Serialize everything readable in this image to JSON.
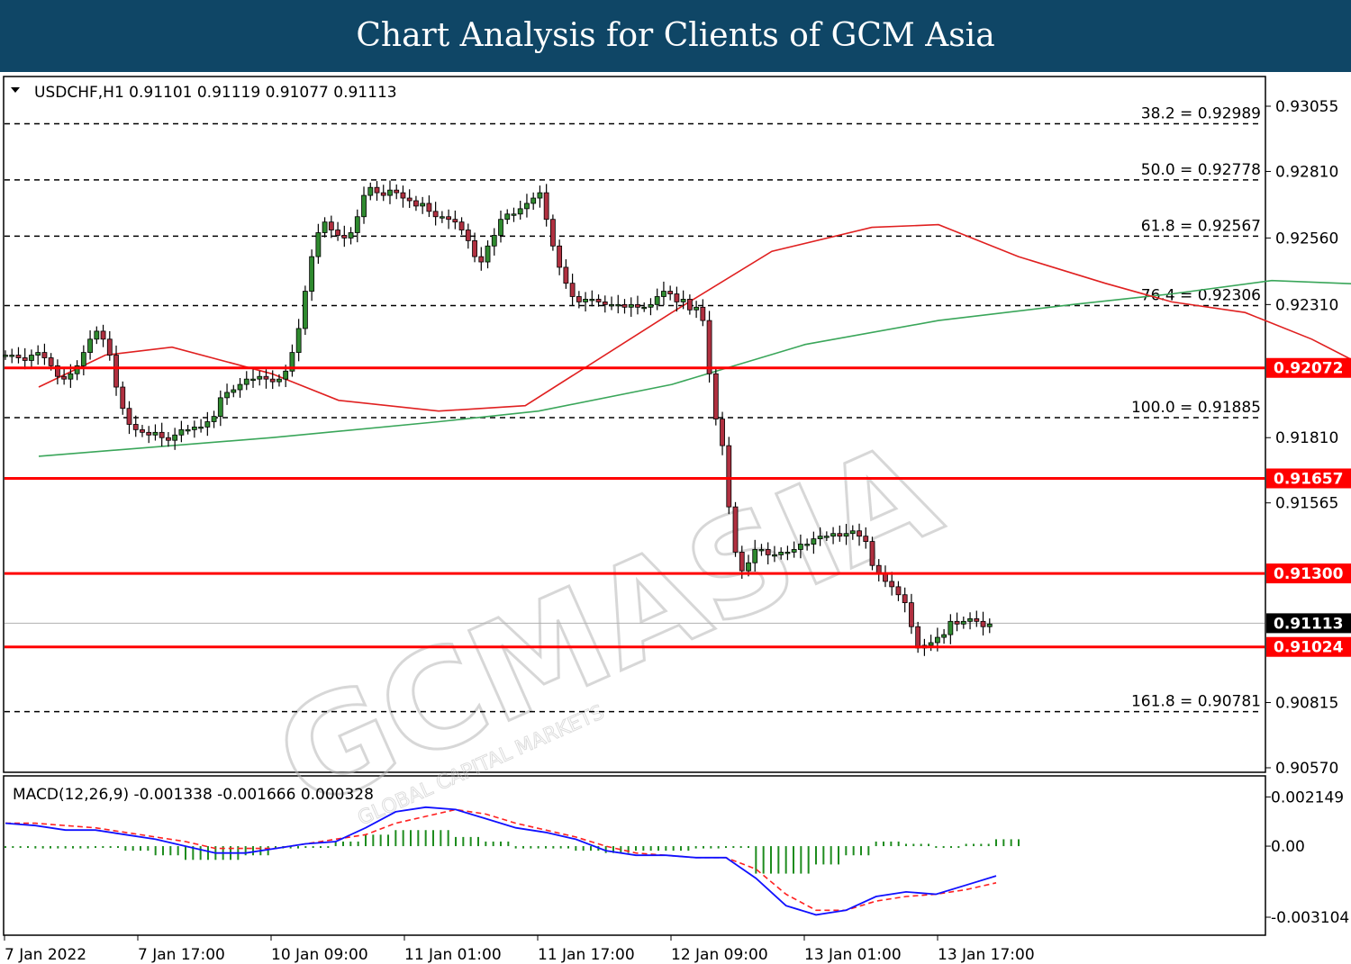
{
  "banner": {
    "title": "Chart Analysis for Clients of GCM Asia"
  },
  "colors": {
    "banner_bg": "#0f4666",
    "bull": "#2f8a2f",
    "bear": "#b03040",
    "ma_fast": "#e02020",
    "ma_slow": "#3aa65a",
    "sr_line": "#ff0000",
    "macd_line": "#1010ff",
    "signal_line": "#ff2020",
    "histogram": "#1e8c1e"
  },
  "chart_data": [
    {
      "type": "candlestick",
      "title": "USDCHF,H1  0.91101 0.91119 0.91077 0.91113",
      "symbol": "USDCHF,H1",
      "ohlc_header": [
        "0.91101",
        "0.91119",
        "0.91077",
        "0.91113"
      ],
      "ylim": [
        0.9048,
        0.9318
      ],
      "y_ticks": [
        "0.93055",
        "0.92810",
        "0.92560",
        "0.92310",
        "0.91810",
        "0.91565",
        "0.90815",
        "0.90570"
      ],
      "x_tick_labels": [
        "7 Jan 2022",
        "7 Jan 17:00",
        "10 Jan 09:00",
        "11 Jan 01:00",
        "11 Jan 17:00",
        "12 Jan 09:00",
        "13 Jan 01:00",
        "13 Jan 17:00"
      ],
      "current_price": "0.91113",
      "support_resistance": [
        "0.92072",
        "0.91657",
        "0.91300",
        "0.91024"
      ],
      "fibonacci_levels": [
        {
          "label": "38.2 = 0.92989",
          "price": 0.92989
        },
        {
          "label": "50.0 = 0.92778",
          "price": 0.92778
        },
        {
          "label": "61.8 = 0.92567",
          "price": 0.92567
        },
        {
          "label": "76.4 = 0.92306",
          "price": 0.92306
        },
        {
          "label": "100.0 = 0.91885",
          "price": 0.91885
        },
        {
          "label": "161.8 = 0.90781",
          "price": 0.90781
        }
      ],
      "close_path": [
        0.9212,
        0.9212,
        0.9211,
        0.921,
        0.9212,
        0.9213,
        0.9211,
        0.9208,
        0.9204,
        0.9203,
        0.9205,
        0.9208,
        0.9213,
        0.9218,
        0.9221,
        0.9218,
        0.9212,
        0.92,
        0.9192,
        0.9186,
        0.9184,
        0.9183,
        0.9182,
        0.9183,
        0.9181,
        0.918,
        0.9182,
        0.9184,
        0.9184,
        0.9185,
        0.9185,
        0.9187,
        0.9189,
        0.9196,
        0.9198,
        0.9199,
        0.9201,
        0.9203,
        0.9203,
        0.9204,
        0.9203,
        0.9202,
        0.9203,
        0.9206,
        0.9213,
        0.9222,
        0.9236,
        0.9249,
        0.9258,
        0.9262,
        0.9259,
        0.9257,
        0.9256,
        0.9258,
        0.9264,
        0.9272,
        0.9275,
        0.9273,
        0.9272,
        0.9274,
        0.9273,
        0.9271,
        0.927,
        0.9268,
        0.9269,
        0.9266,
        0.9264,
        0.9264,
        0.9263,
        0.9262,
        0.9259,
        0.9255,
        0.9249,
        0.9247,
        0.9253,
        0.9257,
        0.9263,
        0.9265,
        0.9265,
        0.9267,
        0.9269,
        0.9271,
        0.9273,
        0.9263,
        0.9253,
        0.9245,
        0.9239,
        0.9234,
        0.9232,
        0.9233,
        0.9233,
        0.9232,
        0.9231,
        0.9231,
        0.9231,
        0.923,
        0.9231,
        0.923,
        0.923,
        0.9231,
        0.9234,
        0.9236,
        0.9235,
        0.9232,
        0.9233,
        0.9229,
        0.923,
        0.9225,
        0.9205,
        0.9188,
        0.9178,
        0.9155,
        0.9138,
        0.9131,
        0.9134,
        0.9139,
        0.9139,
        0.9137,
        0.9137,
        0.9138,
        0.9138,
        0.9139,
        0.9141,
        0.9141,
        0.9143,
        0.9144,
        0.9144,
        0.9145,
        0.9144,
        0.9145,
        0.9146,
        0.9144,
        0.9142,
        0.9133,
        0.913,
        0.9127,
        0.9125,
        0.9122,
        0.9119,
        0.911,
        0.9102,
        0.9103,
        0.9104,
        0.9106,
        0.9107,
        0.9112,
        0.9111,
        0.9112,
        0.9113,
        0.9112,
        0.911,
        0.9111
      ],
      "ma_fast": [
        [
          0.92,
          5
        ],
        [
          0.9212,
          15
        ],
        [
          0.9215,
          25
        ],
        [
          0.9205,
          40
        ],
        [
          0.9195,
          50
        ],
        [
          0.9191,
          65
        ],
        [
          0.9193,
          78
        ],
        [
          0.9228,
          100
        ],
        [
          0.9251,
          115
        ],
        [
          0.926,
          130
        ],
        [
          0.9261,
          140
        ],
        [
          0.9249,
          152
        ],
        [
          0.9239,
          165
        ],
        [
          0.9232,
          175
        ],
        [
          0.9228,
          186
        ],
        [
          0.9218,
          196
        ],
        [
          0.92,
          210
        ],
        [
          0.9182,
          222
        ],
        [
          0.917,
          236
        ],
        [
          0.9153,
          250
        ],
        [
          0.9148,
          256
        ],
        [
          0.9137,
          262
        ],
        [
          0.913,
          270
        ]
      ],
      "ma_slow": [
        [
          0.9174,
          5
        ],
        [
          0.9181,
          40
        ],
        [
          0.9187,
          65
        ],
        [
          0.9191,
          80
        ],
        [
          0.9201,
          100
        ],
        [
          0.9216,
          120
        ],
        [
          0.9225,
          140
        ],
        [
          0.9231,
          160
        ],
        [
          0.9235,
          175
        ],
        [
          0.924,
          190
        ],
        [
          0.9238,
          210
        ],
        [
          0.9232,
          225
        ],
        [
          0.9225,
          240
        ],
        [
          0.921,
          255
        ],
        [
          0.919,
          266
        ],
        [
          0.9174,
          270
        ]
      ]
    },
    {
      "type": "macd",
      "title": "MACD(12,26,9) -0.001338 -0.001666 0.000328",
      "y_ticks": [
        "0.002149",
        "0.00",
        "-0.003104"
      ],
      "ylim": [
        -0.0033,
        0.0024
      ],
      "macd": [
        0.001,
        0.0009,
        0.0007,
        0.0007,
        0.0005,
        0.0003,
        0.0,
        -0.0003,
        -0.0003,
        -0.0001,
        0.0001,
        0.0002,
        0.0008,
        0.0015,
        0.0017,
        0.0016,
        0.0012,
        0.0008,
        0.0006,
        0.0003,
        -0.0002,
        -0.0004,
        -0.0004,
        -0.0005,
        -0.0005,
        -0.0014,
        -0.0026,
        -0.003,
        -0.0028,
        -0.0022,
        -0.002,
        -0.0021,
        -0.0017,
        -0.0013
      ],
      "signal": [
        0.001,
        0.001,
        0.0009,
        0.0008,
        0.0006,
        0.0004,
        0.0002,
        -0.0001,
        -0.0001,
        -0.0001,
        0.0001,
        0.0003,
        0.0005,
        0.001,
        0.0013,
        0.0016,
        0.0014,
        0.001,
        0.0007,
        0.0004,
        0.0,
        -0.0003,
        -0.0004,
        -0.0005,
        -0.0005,
        -0.001,
        -0.0021,
        -0.0028,
        -0.0028,
        -0.0024,
        -0.0022,
        -0.0021,
        -0.0019,
        -0.0016
      ],
      "histogram": [
        0.0,
        -0.0001,
        -0.0001,
        0.0,
        -0.0002,
        -0.0004,
        -0.0006,
        -0.0006,
        -0.0004,
        -0.0001,
        0.0,
        0.0002,
        0.0005,
        0.0007,
        0.0007,
        0.0004,
        0.0002,
        -0.0001,
        -0.0001,
        -0.0002,
        -0.0003,
        -0.0002,
        -0.0002,
        -0.0001,
        0.0,
        -0.0012,
        -0.0012,
        -0.0008,
        -0.0004,
        0.0002,
        0.0001,
        0.0,
        0.0001,
        0.0003
      ]
    }
  ],
  "watermark": {
    "text": "GCMASIA",
    "subtext": "GLOBAL CAPITAL MARKETS"
  }
}
